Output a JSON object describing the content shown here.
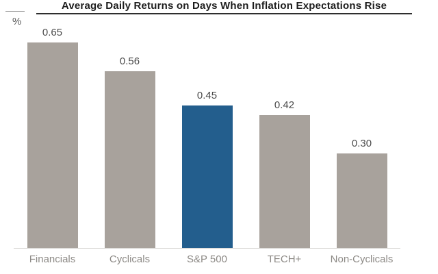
{
  "header": {
    "title": "Average Daily Returns on Days When Inflation Expectations Rise",
    "y_axis_unit": "%"
  },
  "colors": {
    "bar_default": "#a8a29c",
    "bar_highlight": "#235e8d",
    "title_text": "#1d1d1d",
    "value_label_text": "#4b4b4b",
    "category_label_text": "#8d8a86",
    "baseline": "#d9d7d4"
  },
  "chart_data": {
    "type": "bar",
    "title": "Average Daily Returns on Days When Inflation Expectations Rise",
    "categories": [
      "Financials",
      "Cyclicals",
      "S&P 500",
      "TECH+",
      "Non-Cyclicals"
    ],
    "values": [
      0.65,
      0.56,
      0.45,
      0.42,
      0.3
    ],
    "value_labels": [
      "0.65",
      "0.56",
      "0.45",
      "0.42",
      "0.30"
    ],
    "bar_colors": [
      "#a8a29c",
      "#a8a29c",
      "#235e8d",
      "#a8a29c",
      "#a8a29c"
    ],
    "highlight_category": "S&P 500",
    "xlabel": "",
    "ylabel": "%",
    "ylim": [
      0,
      0.7
    ],
    "grid": false,
    "legend": "none",
    "data_labels": "above bars"
  }
}
